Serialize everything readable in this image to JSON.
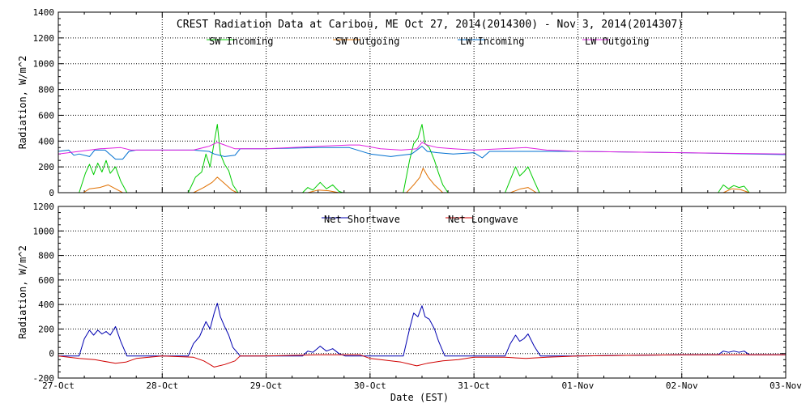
{
  "chart_data": [
    {
      "type": "line",
      "title": "CREST Radiation Data at Caribou, ME   Oct 27, 2014(2014300) - Nov  3, 2014(2014307)",
      "ylabel": "Radiation, W/m^2",
      "xlabel": "",
      "xlim": [
        0,
        7
      ],
      "ylim": [
        0,
        1400
      ],
      "yticks": [
        0,
        200,
        400,
        600,
        800,
        1000,
        1200,
        1400
      ],
      "grid": true,
      "legend_placement": "top",
      "series": [
        {
          "name": "SW Incoming",
          "color": "#00cc00",
          "points": [
            [
              0,
              0
            ],
            [
              0.2,
              0
            ],
            [
              0.26,
              150
            ],
            [
              0.3,
              220
            ],
            [
              0.34,
              140
            ],
            [
              0.38,
              230
            ],
            [
              0.42,
              160
            ],
            [
              0.46,
              250
            ],
            [
              0.5,
              150
            ],
            [
              0.55,
              200
            ],
            [
              0.6,
              90
            ],
            [
              0.66,
              0
            ],
            [
              1,
              0
            ],
            [
              1.25,
              0
            ],
            [
              1.32,
              120
            ],
            [
              1.38,
              160
            ],
            [
              1.42,
              300
            ],
            [
              1.46,
              200
            ],
            [
              1.5,
              390
            ],
            [
              1.53,
              530
            ],
            [
              1.56,
              300
            ],
            [
              1.6,
              220
            ],
            [
              1.64,
              170
            ],
            [
              1.68,
              60
            ],
            [
              1.73,
              0
            ],
            [
              2,
              0
            ],
            [
              2.35,
              0
            ],
            [
              2.4,
              40
            ],
            [
              2.45,
              20
            ],
            [
              2.52,
              80
            ],
            [
              2.58,
              30
            ],
            [
              2.64,
              60
            ],
            [
              2.7,
              10
            ],
            [
              2.74,
              0
            ],
            [
              3,
              0
            ],
            [
              3.32,
              0
            ],
            [
              3.38,
              250
            ],
            [
              3.42,
              380
            ],
            [
              3.46,
              420
            ],
            [
              3.5,
              530
            ],
            [
              3.53,
              380
            ],
            [
              3.57,
              350
            ],
            [
              3.62,
              250
            ],
            [
              3.66,
              150
            ],
            [
              3.7,
              60
            ],
            [
              3.75,
              0
            ],
            [
              4,
              0
            ],
            [
              4.3,
              0
            ],
            [
              4.35,
              100
            ],
            [
              4.4,
              200
            ],
            [
              4.44,
              130
            ],
            [
              4.48,
              160
            ],
            [
              4.52,
              200
            ],
            [
              4.58,
              90
            ],
            [
              4.63,
              0
            ],
            [
              5,
              0
            ],
            [
              6.35,
              0
            ],
            [
              6.4,
              60
            ],
            [
              6.45,
              30
            ],
            [
              6.5,
              55
            ],
            [
              6.55,
              40
            ],
            [
              6.6,
              50
            ],
            [
              6.65,
              0
            ],
            [
              7,
              0
            ]
          ]
        },
        {
          "name": "SW Outgoing",
          "color": "#e07000",
          "points": [
            [
              0,
              0
            ],
            [
              0.24,
              0
            ],
            [
              0.3,
              30
            ],
            [
              0.4,
              40
            ],
            [
              0.48,
              60
            ],
            [
              0.55,
              30
            ],
            [
              0.62,
              0
            ],
            [
              1,
              0
            ],
            [
              1.3,
              0
            ],
            [
              1.4,
              40
            ],
            [
              1.48,
              80
            ],
            [
              1.53,
              120
            ],
            [
              1.6,
              70
            ],
            [
              1.67,
              20
            ],
            [
              1.72,
              0
            ],
            [
              2,
              0
            ],
            [
              2.4,
              0
            ],
            [
              2.5,
              20
            ],
            [
              2.6,
              15
            ],
            [
              2.7,
              0
            ],
            [
              3,
              0
            ],
            [
              3.35,
              0
            ],
            [
              3.42,
              60
            ],
            [
              3.48,
              120
            ],
            [
              3.51,
              190
            ],
            [
              3.56,
              120
            ],
            [
              3.62,
              60
            ],
            [
              3.7,
              0
            ],
            [
              4,
              0
            ],
            [
              4.35,
              0
            ],
            [
              4.45,
              30
            ],
            [
              4.52,
              40
            ],
            [
              4.6,
              0
            ],
            [
              5,
              0
            ],
            [
              6.4,
              0
            ],
            [
              6.48,
              30
            ],
            [
              6.56,
              25
            ],
            [
              6.65,
              0
            ],
            [
              7,
              0
            ]
          ]
        },
        {
          "name": "LW Incoming",
          "color": "#0070d0",
          "points": [
            [
              0,
              320
            ],
            [
              0.1,
              330
            ],
            [
              0.15,
              290
            ],
            [
              0.2,
              300
            ],
            [
              0.3,
              280
            ],
            [
              0.35,
              330
            ],
            [
              0.45,
              330
            ],
            [
              0.55,
              260
            ],
            [
              0.62,
              260
            ],
            [
              0.68,
              320
            ],
            [
              0.75,
              330
            ],
            [
              1,
              330
            ],
            [
              1.3,
              330
            ],
            [
              1.45,
              320
            ],
            [
              1.5,
              300
            ],
            [
              1.6,
              280
            ],
            [
              1.7,
              290
            ],
            [
              1.75,
              340
            ],
            [
              2,
              340
            ],
            [
              2.5,
              350
            ],
            [
              2.8,
              350
            ],
            [
              3,
              300
            ],
            [
              3.2,
              280
            ],
            [
              3.3,
              290
            ],
            [
              3.4,
              300
            ],
            [
              3.5,
              360
            ],
            [
              3.55,
              320
            ],
            [
              3.65,
              310
            ],
            [
              3.8,
              300
            ],
            [
              4,
              310
            ],
            [
              4.08,
              270
            ],
            [
              4.15,
              320
            ],
            [
              4.5,
              320
            ],
            [
              5,
              320
            ],
            [
              6,
              310
            ],
            [
              7,
              295
            ]
          ]
        },
        {
          "name": "LW Outgoing",
          "color": "#e020e0",
          "points": [
            [
              0,
              300
            ],
            [
              0.2,
              320
            ],
            [
              0.4,
              340
            ],
            [
              0.6,
              350
            ],
            [
              0.7,
              330
            ],
            [
              1,
              330
            ],
            [
              1.3,
              330
            ],
            [
              1.45,
              360
            ],
            [
              1.53,
              390
            ],
            [
              1.6,
              370
            ],
            [
              1.7,
              340
            ],
            [
              2,
              340
            ],
            [
              2.5,
              360
            ],
            [
              2.8,
              370
            ],
            [
              2.9,
              370
            ],
            [
              3.1,
              340
            ],
            [
              3.3,
              330
            ],
            [
              3.45,
              340
            ],
            [
              3.5,
              390
            ],
            [
              3.55,
              370
            ],
            [
              3.65,
              350
            ],
            [
              3.8,
              340
            ],
            [
              4,
              330
            ],
            [
              4.5,
              350
            ],
            [
              4.7,
              330
            ],
            [
              5,
              320
            ],
            [
              6,
              310
            ],
            [
              7,
              300
            ]
          ]
        }
      ]
    },
    {
      "type": "line",
      "title": "",
      "ylabel": "Radiation, W/m^2",
      "xlabel": "Date (EST)",
      "xlim": [
        0,
        7
      ],
      "ylim": [
        -200,
        1200
      ],
      "yticks": [
        -200,
        0,
        200,
        400,
        600,
        800,
        1000,
        1200
      ],
      "xtick_labels": [
        "27-Oct",
        "28-Oct",
        "29-Oct",
        "30-Oct",
        "31-Oct",
        "01-Nov",
        "02-Nov",
        "03-Nov"
      ],
      "grid": true,
      "legend_placement": "top",
      "series": [
        {
          "name": "Net Shortwave",
          "color": "#0000b0",
          "points": [
            [
              0,
              -20
            ],
            [
              0.2,
              -20
            ],
            [
              0.25,
              120
            ],
            [
              0.3,
              190
            ],
            [
              0.34,
              150
            ],
            [
              0.38,
              190
            ],
            [
              0.42,
              160
            ],
            [
              0.46,
              180
            ],
            [
              0.5,
              150
            ],
            [
              0.55,
              220
            ],
            [
              0.6,
              100
            ],
            [
              0.66,
              -20
            ],
            [
              1,
              -20
            ],
            [
              1.25,
              -20
            ],
            [
              1.3,
              80
            ],
            [
              1.36,
              140
            ],
            [
              1.42,
              260
            ],
            [
              1.46,
              200
            ],
            [
              1.5,
              330
            ],
            [
              1.53,
              410
            ],
            [
              1.56,
              300
            ],
            [
              1.6,
              220
            ],
            [
              1.64,
              150
            ],
            [
              1.68,
              50
            ],
            [
              1.75,
              -20
            ],
            [
              2,
              -20
            ],
            [
              2.35,
              -20
            ],
            [
              2.4,
              20
            ],
            [
              2.45,
              10
            ],
            [
              2.52,
              60
            ],
            [
              2.58,
              20
            ],
            [
              2.64,
              40
            ],
            [
              2.7,
              0
            ],
            [
              2.76,
              -20
            ],
            [
              3,
              -20
            ],
            [
              3.32,
              -20
            ],
            [
              3.38,
              200
            ],
            [
              3.42,
              330
            ],
            [
              3.46,
              300
            ],
            [
              3.5,
              390
            ],
            [
              3.53,
              300
            ],
            [
              3.57,
              280
            ],
            [
              3.62,
              200
            ],
            [
              3.66,
              100
            ],
            [
              3.72,
              -20
            ],
            [
              4,
              -20
            ],
            [
              4.3,
              -20
            ],
            [
              4.35,
              80
            ],
            [
              4.4,
              150
            ],
            [
              4.44,
              100
            ],
            [
              4.48,
              120
            ],
            [
              4.52,
              160
            ],
            [
              4.58,
              60
            ],
            [
              4.64,
              -20
            ],
            [
              5,
              -20
            ],
            [
              6,
              -10
            ],
            [
              6.35,
              -10
            ],
            [
              6.4,
              20
            ],
            [
              6.45,
              10
            ],
            [
              6.5,
              20
            ],
            [
              6.55,
              10
            ],
            [
              6.6,
              20
            ],
            [
              6.65,
              -10
            ],
            [
              7,
              -10
            ]
          ]
        },
        {
          "name": "Net Longwave",
          "color": "#d00000",
          "points": [
            [
              0,
              -20
            ],
            [
              0.2,
              -40
            ],
            [
              0.35,
              -50
            ],
            [
              0.55,
              -80
            ],
            [
              0.65,
              -70
            ],
            [
              0.75,
              -40
            ],
            [
              1,
              -20
            ],
            [
              1.3,
              -30
            ],
            [
              1.4,
              -60
            ],
            [
              1.5,
              -110
            ],
            [
              1.6,
              -90
            ],
            [
              1.7,
              -60
            ],
            [
              1.75,
              -20
            ],
            [
              2,
              -20
            ],
            [
              2.5,
              -10
            ],
            [
              2.9,
              -10
            ],
            [
              3,
              -40
            ],
            [
              3.3,
              -70
            ],
            [
              3.45,
              -100
            ],
            [
              3.55,
              -80
            ],
            [
              3.7,
              -60
            ],
            [
              3.85,
              -50
            ],
            [
              4,
              -30
            ],
            [
              4.3,
              -30
            ],
            [
              4.5,
              -40
            ],
            [
              4.7,
              -30
            ],
            [
              5,
              -20
            ],
            [
              6,
              -10
            ],
            [
              7,
              -10
            ]
          ]
        }
      ]
    }
  ]
}
